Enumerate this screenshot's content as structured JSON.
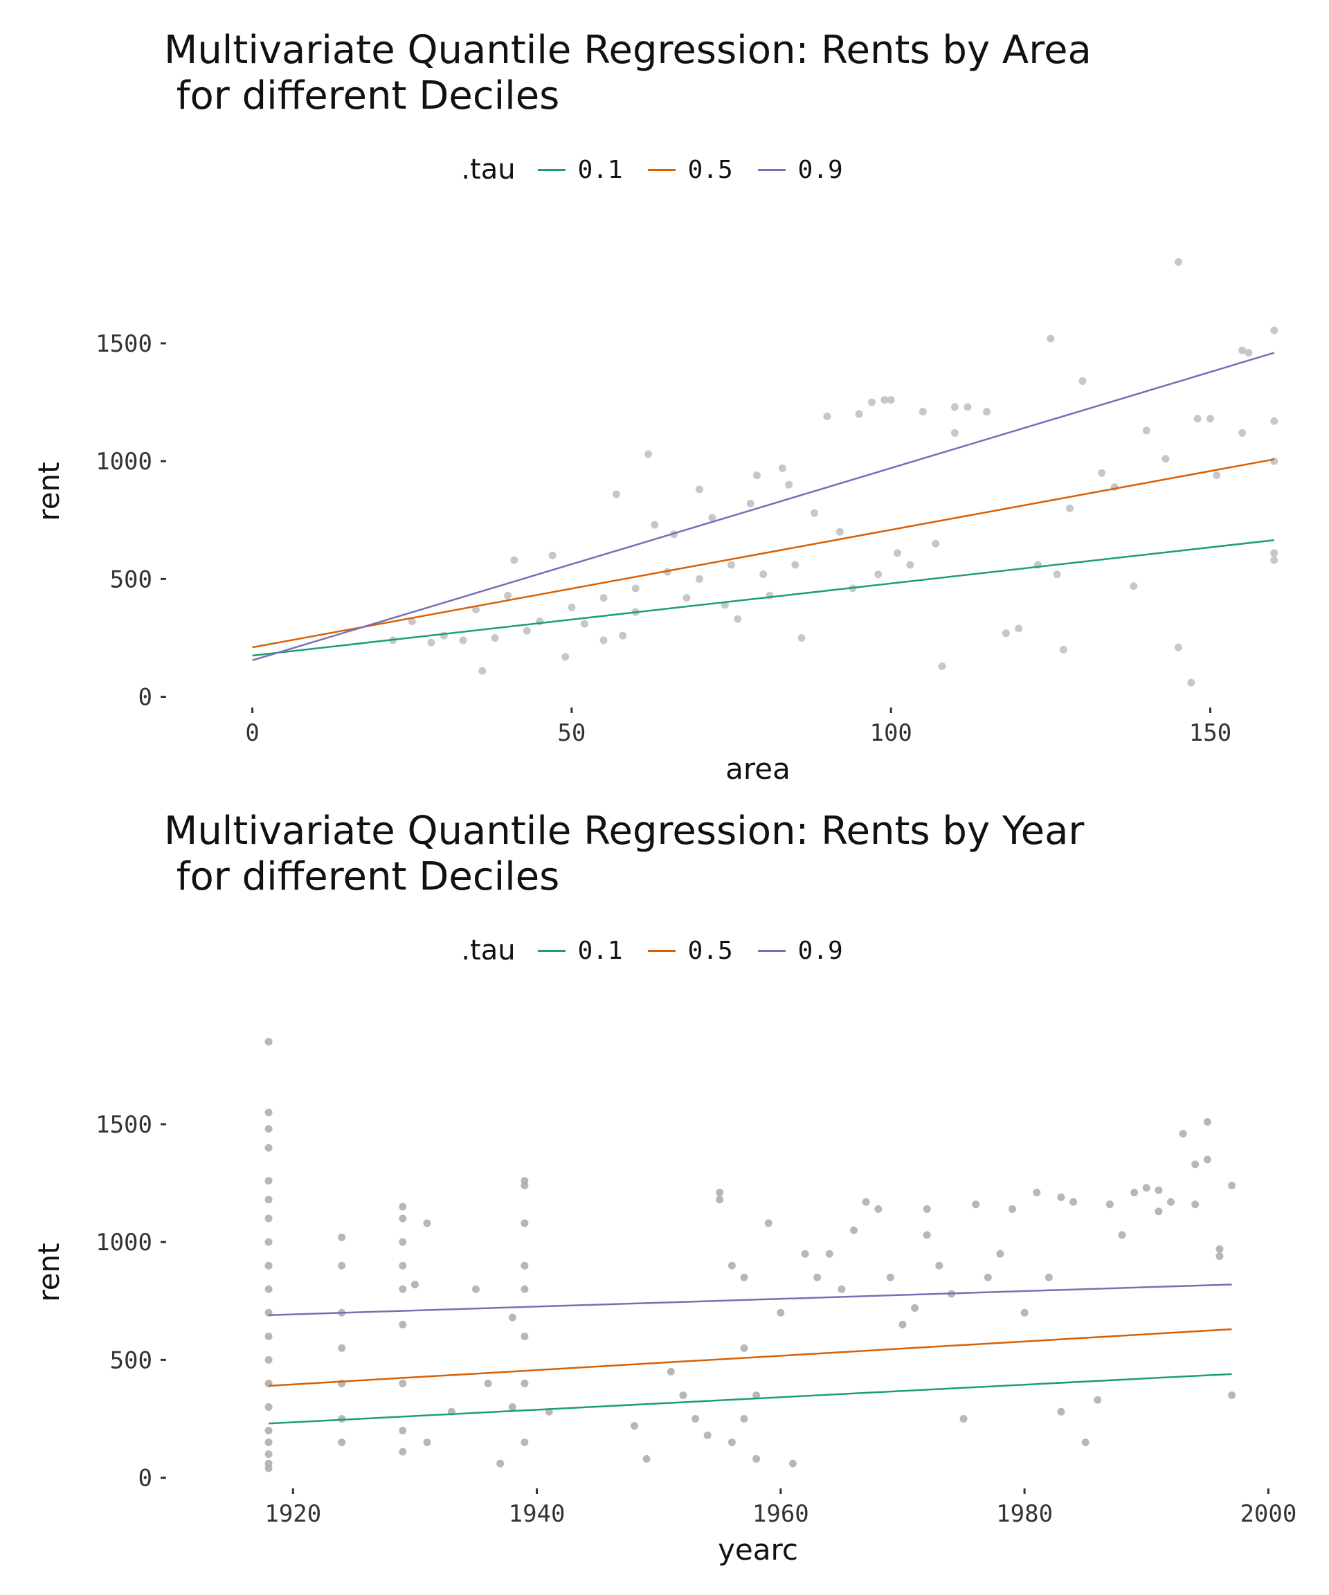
{
  "chart_data": [
    {
      "type": "scatter",
      "title": "Multivariate Quantile Regression: Rents by Area\n for different Deciles",
      "xlabel": "area",
      "ylabel": "rent",
      "xlim": [
        -7,
        161
      ],
      "ylim": [
        -10,
        1870
      ],
      "x_ticks": [
        0,
        50,
        100,
        150
      ],
      "y_ticks": [
        0,
        500,
        1000,
        1500
      ],
      "x_tick_labels": [
        "0",
        "50",
        "100",
        "150"
      ],
      "y_tick_labels": [
        "0",
        "500",
        "1000",
        "1500"
      ],
      "grid": false,
      "legend": {
        "title": ".tau",
        "position": "top"
      },
      "point_color": "#bdbdbd",
      "series": [
        {
          "name": "0.1",
          "color": "#1b9e77",
          "x": [
            0,
            160
          ],
          "y": [
            175,
            665
          ]
        },
        {
          "name": "0.5",
          "color": "#d95f02",
          "x": [
            0,
            160
          ],
          "y": [
            210,
            1008
          ]
        },
        {
          "name": "0.9",
          "color": "#7570b3",
          "x": [
            0,
            160
          ],
          "y": [
            155,
            1460
          ]
        }
      ],
      "points": {
        "x": [
          145,
          147,
          125,
          130,
          160,
          155,
          156,
          148,
          108,
          99,
          160,
          160,
          151,
          133,
          135,
          128,
          120,
          145,
          160,
          118,
          127,
          112,
          115,
          110,
          105,
          100,
          97,
          95,
          90,
          62,
          22,
          25,
          30,
          35,
          40,
          45,
          50,
          55,
          60,
          65,
          70,
          75,
          80,
          85,
          47,
          41,
          52,
          58,
          43,
          38,
          33,
          28,
          66,
          72,
          78,
          84,
          88,
          92,
          103,
          107,
          68,
          74,
          81,
          55,
          49,
          36,
          60,
          76,
          86,
          94,
          98,
          101,
          63,
          57,
          70,
          79,
          83,
          110,
          150,
          155,
          140,
          143,
          126,
          123,
          138,
          160
        ],
        "y": [
          1845,
          60,
          1520,
          1340,
          1555,
          1470,
          1460,
          1180,
          130,
          1260,
          1170,
          1000,
          940,
          950,
          890,
          800,
          290,
          210,
          580,
          270,
          200,
          1230,
          1210,
          1230,
          1210,
          1260,
          1250,
          1200,
          1190,
          1030,
          240,
          320,
          260,
          370,
          430,
          320,
          380,
          420,
          460,
          530,
          500,
          560,
          520,
          560,
          600,
          580,
          310,
          260,
          280,
          250,
          240,
          230,
          690,
          760,
          820,
          900,
          780,
          700,
          560,
          650,
          420,
          390,
          430,
          240,
          170,
          110,
          360,
          330,
          250,
          460,
          520,
          610,
          730,
          860,
          880,
          940,
          970,
          1120,
          1180,
          1120,
          1130,
          1010,
          520,
          560,
          470,
          610
        ]
      }
    },
    {
      "type": "scatter",
      "title": "Multivariate Quantile Regression: Rents by Year\n for different Deciles",
      "xlabel": "yearc",
      "ylabel": "rent",
      "xlim": [
        1913,
        2001
      ],
      "ylim": [
        -10,
        1870
      ],
      "x_ticks": [
        1920,
        1940,
        1960,
        1980,
        2000
      ],
      "y_ticks": [
        0,
        500,
        1000,
        1500
      ],
      "x_tick_labels": [
        "1920",
        "1940",
        "1960",
        "1980",
        "2000"
      ],
      "y_tick_labels": [
        "0",
        "500",
        "1000",
        "1500"
      ],
      "grid": false,
      "legend": {
        "title": ".tau",
        "position": "top"
      },
      "point_color": "#aaaaaa",
      "series": [
        {
          "name": "0.1",
          "color": "#1b9e77",
          "x": [
            1918,
            1997
          ],
          "y": [
            230,
            440
          ]
        },
        {
          "name": "0.5",
          "color": "#d95f02",
          "x": [
            1918,
            1997
          ],
          "y": [
            390,
            630
          ]
        },
        {
          "name": "0.9",
          "color": "#7570b3",
          "x": [
            1918,
            1997
          ],
          "y": [
            690,
            820
          ]
        }
      ],
      "points": {
        "x": [
          1918,
          1918,
          1918,
          1918,
          1918,
          1918,
          1918,
          1918,
          1918,
          1918,
          1918,
          1918,
          1918,
          1918,
          1918,
          1918,
          1918,
          1918,
          1918,
          1918,
          1924,
          1924,
          1924,
          1924,
          1924,
          1924,
          1924,
          1929,
          1929,
          1929,
          1929,
          1929,
          1929,
          1929,
          1929,
          1929,
          1930,
          1931,
          1931,
          1933,
          1935,
          1936,
          1937,
          1938,
          1938,
          1939,
          1939,
          1939,
          1939,
          1939,
          1939,
          1939,
          1939,
          1941,
          1948,
          1949,
          1951,
          1952,
          1953,
          1954,
          1955,
          1955,
          1956,
          1956,
          1957,
          1957,
          1957,
          1958,
          1958,
          1959,
          1960,
          1961,
          1962,
          1963,
          1964,
          1965,
          1966,
          1967,
          1968,
          1969,
          1970,
          1971,
          1972,
          1972,
          1973,
          1974,
          1975,
          1976,
          1977,
          1978,
          1979,
          1980,
          1981,
          1982,
          1983,
          1983,
          1984,
          1985,
          1986,
          1987,
          1988,
          1989,
          1990,
          1991,
          1991,
          1992,
          1993,
          1994,
          1994,
          1995,
          1995,
          1996,
          1996,
          1997,
          1997
        ],
        "y": [
          1850,
          1550,
          1480,
          1400,
          1260,
          1180,
          1100,
          1000,
          900,
          800,
          700,
          600,
          500,
          400,
          300,
          200,
          150,
          100,
          60,
          40,
          1020,
          900,
          700,
          550,
          400,
          250,
          150,
          1150,
          1100,
          1000,
          900,
          800,
          650,
          400,
          200,
          110,
          820,
          1080,
          150,
          280,
          800,
          400,
          60,
          300,
          680,
          1260,
          1240,
          1080,
          900,
          800,
          600,
          400,
          150,
          280,
          220,
          80,
          450,
          350,
          250,
          180,
          1210,
          1180,
          900,
          150,
          850,
          550,
          250,
          350,
          80,
          1080,
          700,
          60,
          950,
          850,
          950,
          800,
          1050,
          1170,
          1140,
          850,
          650,
          720,
          1140,
          1030,
          900,
          780,
          250,
          1160,
          850,
          950,
          1140,
          700,
          1210,
          850,
          1190,
          280,
          1170,
          150,
          330,
          1160,
          1030,
          1210,
          1230,
          1130,
          1220,
          1170,
          1460,
          1160,
          1330,
          1510,
          1350,
          970,
          940,
          1240,
          350
        ]
      }
    }
  ]
}
